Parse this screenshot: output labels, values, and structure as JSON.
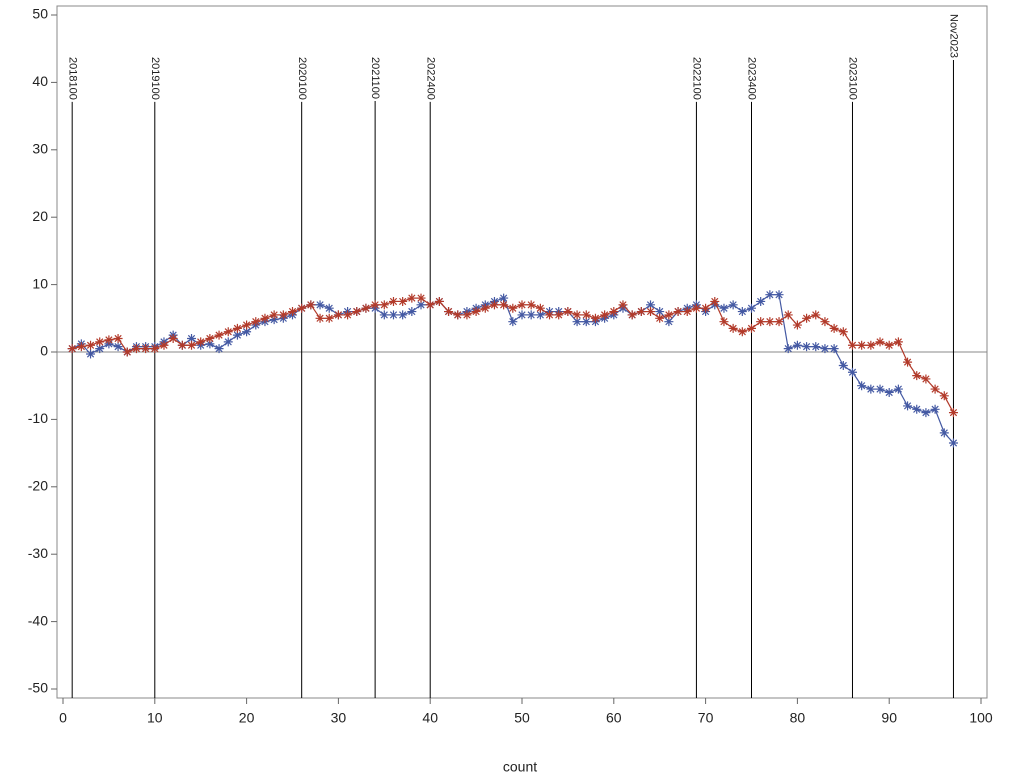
{
  "chart_data": {
    "type": "line",
    "x_label": "count",
    "x": [
      1,
      2,
      3,
      4,
      5,
      6,
      7,
      8,
      9,
      10,
      11,
      12,
      13,
      14,
      15,
      16,
      17,
      18,
      19,
      20,
      21,
      22,
      23,
      24,
      25,
      26,
      27,
      28,
      29,
      30,
      31,
      32,
      33,
      34,
      35,
      36,
      37,
      38,
      39,
      40,
      41,
      42,
      43,
      44,
      45,
      46,
      47,
      48,
      49,
      50,
      51,
      52,
      53,
      54,
      55,
      56,
      57,
      58,
      59,
      60,
      61,
      62,
      63,
      64,
      65,
      66,
      67,
      68,
      69,
      70,
      71,
      72,
      73,
      74,
      75,
      76,
      77,
      78,
      79,
      80,
      81,
      82,
      83,
      84,
      85,
      86,
      87,
      88,
      89,
      90,
      91,
      92,
      93,
      94,
      95,
      96,
      97
    ],
    "series": [
      {
        "color": "#4459a3",
        "values": [
          0.5,
          1.2,
          -0.3,
          0.5,
          1.2,
          0.8,
          0,
          0.8,
          0.8,
          0.8,
          1.5,
          2.5,
          1,
          2,
          1,
          1.2,
          0.5,
          1.5,
          2.5,
          3,
          4,
          4.5,
          4.8,
          5,
          5.5,
          6.5,
          7,
          7,
          6.5,
          5.5,
          6,
          6,
          6.5,
          6.5,
          5.5,
          5.5,
          5.5,
          6,
          7,
          7,
          7.5,
          6,
          5.5,
          6,
          6.5,
          7,
          7.5,
          8,
          4.5,
          5.5,
          5.5,
          5.5,
          6,
          6,
          6,
          4.5,
          4.5,
          4.5,
          5,
          5.5,
          6.5,
          5.5,
          6,
          7,
          6,
          4.5,
          6,
          6.5,
          7,
          6,
          7,
          6.5,
          7,
          6,
          6.5,
          7.5,
          8.5,
          8.5,
          0.5,
          1,
          0.8,
          0.8,
          0.5,
          0.5,
          -2,
          -3,
          -5,
          -5.5,
          -5.5,
          -6,
          -5.5,
          -8,
          -8.5,
          -9,
          -8.5,
          -12,
          -13.5
        ]
      },
      {
        "color": "#b23a2a",
        "values": [
          0.5,
          0.8,
          1,
          1.5,
          1.8,
          2,
          0,
          0.5,
          0.5,
          0.5,
          1,
          2,
          1,
          1,
          1.5,
          2,
          2.5,
          3,
          3.5,
          4,
          4.5,
          5,
          5.5,
          5.5,
          6,
          6.5,
          7,
          5,
          5,
          5.5,
          5.5,
          6,
          6.5,
          7,
          7,
          7.5,
          7.5,
          8,
          8,
          7,
          7.5,
          6,
          5.5,
          5.5,
          6,
          6.5,
          7,
          7,
          6.5,
          7,
          7,
          6.5,
          5.5,
          5.5,
          6,
          5.5,
          5.5,
          5,
          5.5,
          6,
          7,
          5.5,
          6,
          6,
          5,
          5.5,
          6,
          6,
          6.5,
          6.5,
          7.5,
          4.5,
          3.5,
          3,
          3.5,
          4.5,
          4.5,
          4.5,
          5.5,
          4,
          5,
          5.5,
          4.5,
          3.5,
          3,
          1,
          1,
          1,
          1.5,
          1,
          1.5,
          -1.5,
          -3.5,
          -4,
          -5.5,
          -6.5,
          -9
        ]
      }
    ],
    "xlim": [
      0,
      100
    ],
    "xticks": [
      0,
      10,
      20,
      30,
      40,
      50,
      60,
      70,
      80,
      90,
      100
    ],
    "ylim": [
      -50,
      50
    ],
    "yticks": [
      -50,
      -40,
      -30,
      -20,
      -10,
      0,
      10,
      20,
      30,
      40,
      50
    ],
    "hline": 0,
    "reflines": [
      {
        "value": 1,
        "label": "2018100"
      },
      {
        "value": 10,
        "label": "2019100"
      },
      {
        "value": 26,
        "label": "2020100"
      },
      {
        "value": 34,
        "label": "2021100"
      },
      {
        "value": 40,
        "label": "2022400"
      },
      {
        "value": 69,
        "label": "2022100"
      },
      {
        "value": 75,
        "label": "2023400"
      },
      {
        "value": 86,
        "label": "2023100"
      },
      {
        "value": 97,
        "label": "Nov2023"
      }
    ],
    "marker": "asterisk"
  }
}
